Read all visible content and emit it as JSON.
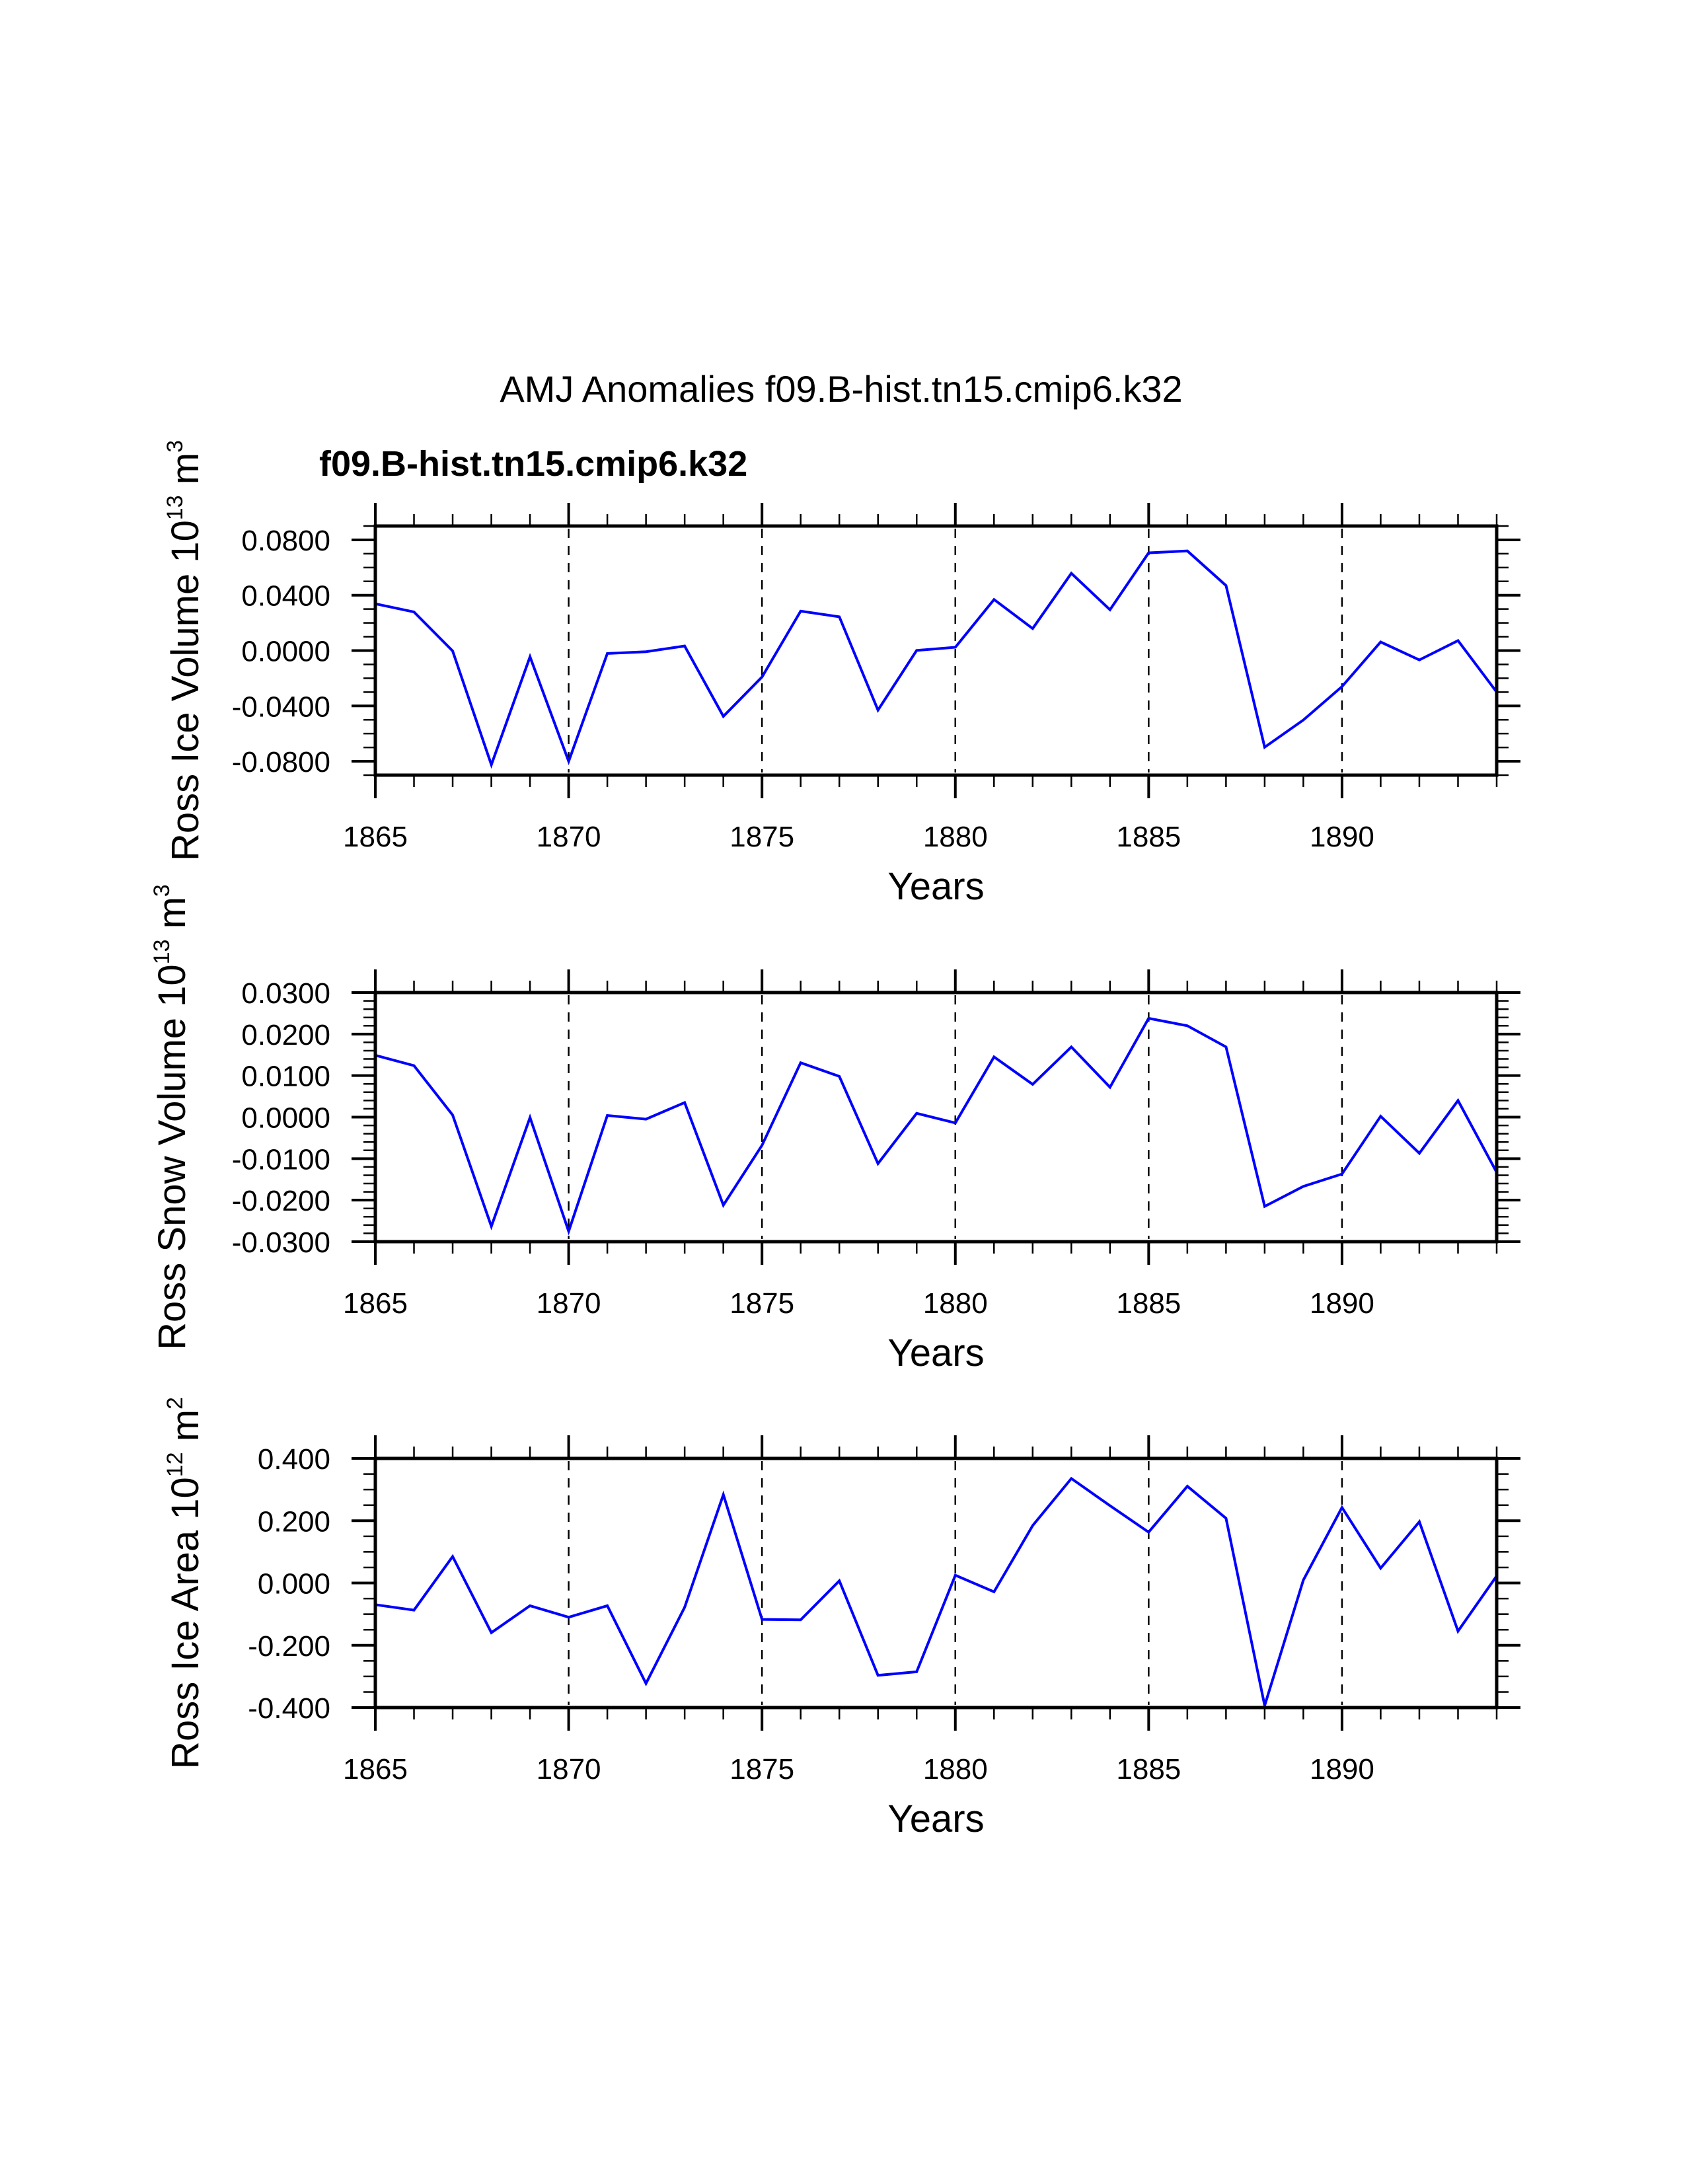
{
  "chart_data": {
    "type": "line",
    "title": "AMJ Anomalies f09.B-hist.tn15.cmip6.k32",
    "subtitle": "f09.B-hist.tn15.cmip6.k32",
    "subtitle_color": "#0000FF",
    "series_color": "#0000FF",
    "x": [
      1865,
      1866,
      1867,
      1868,
      1869,
      1870,
      1871,
      1872,
      1873,
      1874,
      1875,
      1876,
      1877,
      1878,
      1879,
      1880,
      1881,
      1882,
      1883,
      1884,
      1885,
      1886,
      1887,
      1888,
      1889,
      1890,
      1891,
      1892,
      1893,
      1894
    ],
    "xlim": [
      1865,
      1894
    ],
    "x_major_ticks": [
      1865,
      1870,
      1875,
      1880,
      1885,
      1890
    ],
    "x_minor_step": 1,
    "vertical_reference_lines": [
      1870,
      1875,
      1880,
      1885,
      1890
    ],
    "panels": [
      {
        "name": "ice-volume",
        "xlabel": "Years",
        "ylabel": "Ross Ice Volume 10",
        "ylabel_exp": "13",
        "ylabel_unit": " m",
        "ylabel_unit_exp": "3",
        "ylim": [
          -0.09,
          0.09
        ],
        "y_major_ticks": [
          0.08,
          0.04,
          0.0,
          -0.04,
          -0.08
        ],
        "y_tick_labels": [
          "0.0800",
          "0.0400",
          "0.0000",
          "-0.0400",
          "-0.0800"
        ],
        "y_minor_step": 0.01,
        "series": [
          {
            "name": "f09.B-hist.tn15.cmip6.k32",
            "values": [
              0.0338,
              0.0279,
              -0.0003,
              -0.0825,
              -0.0045,
              -0.08,
              -0.0021,
              -0.0008,
              0.0033,
              -0.0475,
              -0.0191,
              0.0285,
              0.0244,
              -0.043,
              0.0001,
              0.0024,
              0.0369,
              0.0159,
              0.0558,
              0.0295,
              0.0706,
              0.072,
              0.047,
              -0.0698,
              -0.0502,
              -0.026,
              0.0062,
              -0.0068,
              0.0072,
              -0.03
            ]
          }
        ]
      },
      {
        "name": "snow-volume",
        "xlabel": "Years",
        "ylabel": "Ross Snow Volume 10",
        "ylabel_exp": "13",
        "ylabel_unit": " m",
        "ylabel_unit_exp": "3",
        "ylim": [
          -0.03,
          0.03
        ],
        "y_major_ticks": [
          0.03,
          0.02,
          0.01,
          0.0,
          -0.01,
          -0.02,
          -0.03
        ],
        "y_tick_labels": [
          "0.0300",
          "0.0200",
          "0.0100",
          "0.0000",
          "-0.0100",
          "-0.0200",
          "-0.0300"
        ],
        "y_minor_step": 0.002,
        "series": [
          {
            "name": "f09.B-hist.tn15.cmip6.k32",
            "values": [
              0.0149,
              0.0124,
              0.0005,
              -0.0263,
              -0.0001,
              -0.0275,
              0.0004,
              -0.0005,
              0.0035,
              -0.0212,
              -0.0068,
              0.0131,
              0.0098,
              -0.0112,
              0.0009,
              -0.0014,
              0.0145,
              0.0079,
              0.0169,
              0.0072,
              0.0238,
              0.022,
              0.0169,
              -0.0215,
              -0.0167,
              -0.0137,
              0.0002,
              -0.0087,
              0.004,
              -0.0133
            ]
          }
        ]
      },
      {
        "name": "ice-area",
        "xlabel": "Years",
        "ylabel": "Ross Ice Area 10",
        "ylabel_exp": "12",
        "ylabel_unit": " m",
        "ylabel_unit_exp": "2",
        "ylim": [
          -0.4,
          0.4
        ],
        "y_major_ticks": [
          0.4,
          0.2,
          0.0,
          -0.2,
          -0.4
        ],
        "y_tick_labels": [
          "0.400",
          "0.200",
          "0.000",
          "-0.200",
          "-0.400"
        ],
        "y_minor_step": 0.05,
        "series": [
          {
            "name": "f09.B-hist.tn15.cmip6.k32",
            "values": [
              -0.0695,
              -0.0872,
              0.0851,
              -0.1596,
              -0.073,
              -0.11,
              -0.073,
              -0.3227,
              -0.078,
              0.2837,
              -0.117,
              -0.1184,
              0.007,
              -0.2964,
              -0.2851,
              0.0248,
              -0.0284,
              0.1844,
              0.3355,
              0.2482,
              0.1631,
              0.3106,
              0.2078,
              -0.3936,
              0.0092,
              0.2426,
              0.0475,
              0.1965,
              -0.1546,
              0.0227
            ]
          }
        ]
      }
    ]
  }
}
